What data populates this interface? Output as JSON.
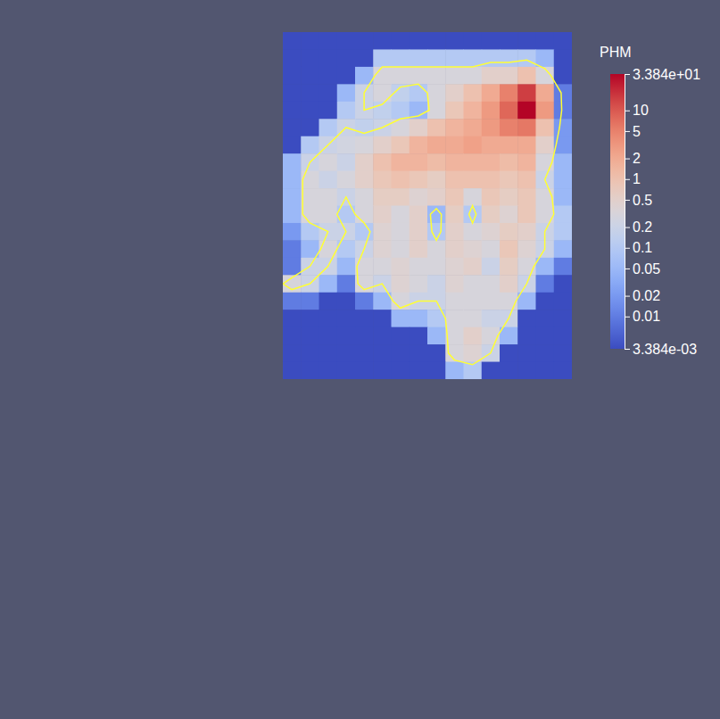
{
  "chart_data": {
    "type": "heatmap",
    "log": true,
    "tick_labels": false,
    "colorbar": {
      "title": "PHM",
      "range": [
        0.003384,
        33.84
      ],
      "ticks": [
        {
          "value": 33.84,
          "label": "3.384e+01"
        },
        10,
        5,
        2,
        1,
        0.5,
        0.2,
        0.1,
        0.05,
        0.02,
        0.01,
        {
          "value": 0.003384,
          "label": "3.384e-03"
        }
      ]
    },
    "contour_levels": [
      0.2
    ],
    "contour_color": "#ffff33",
    "z": [
      [
        0.003384,
        0.003384,
        0.003384,
        0.003384,
        0.003384,
        0.003384,
        0.003384,
        0.003384,
        0.003384,
        0.003384,
        0.003384,
        0.003384,
        0.003384,
        0.003384,
        0.003384,
        0.003384
      ],
      [
        0.003384,
        0.003384,
        0.003384,
        0.003384,
        0.003384,
        0.1,
        0.1,
        0.1,
        0.1,
        0.1,
        0.1,
        0.1,
        0.1,
        0.1,
        0.05,
        0.003384
      ],
      [
        0.003384,
        0.003384,
        0.003384,
        0.003384,
        0.05,
        0.3,
        0.3,
        0.3,
        0.3,
        0.3,
        0.3,
        0.5,
        0.5,
        1,
        0.3,
        0.003384
      ],
      [
        0.003384,
        0.003384,
        0.003384,
        0.05,
        0.2,
        0.3,
        0.15,
        0.1,
        0.3,
        0.5,
        1,
        2,
        5,
        15,
        2,
        0.01
      ],
      [
        0.003384,
        0.003384,
        0.003384,
        0.1,
        0.2,
        0.15,
        0.1,
        0.05,
        0.3,
        0.8,
        1.5,
        3,
        8,
        33.84,
        3,
        0.01
      ],
      [
        0.003384,
        0.003384,
        0.1,
        0.2,
        0.15,
        0.2,
        0.3,
        0.5,
        1,
        1.5,
        2,
        3,
        5,
        6,
        1,
        0.02
      ],
      [
        0.003384,
        0.1,
        0.2,
        0.25,
        0.3,
        0.5,
        0.8,
        1.5,
        2,
        2,
        2.5,
        2,
        2,
        2,
        0.5,
        0.02
      ],
      [
        0.05,
        0.2,
        0.3,
        0.2,
        0.5,
        1,
        1.5,
        1.5,
        1.2,
        1.5,
        1.5,
        1.5,
        1.2,
        1.5,
        0.3,
        0.05
      ],
      [
        0.05,
        0.3,
        0.2,
        0.3,
        0.5,
        0.8,
        1,
        0.8,
        0.6,
        1,
        1,
        1,
        0.8,
        1,
        0.2,
        0.05
      ],
      [
        0.05,
        0.3,
        0.3,
        0.2,
        0.3,
        0.6,
        0.6,
        0.4,
        0.5,
        0.8,
        0.3,
        0.8,
        0.6,
        0.8,
        0.3,
        0.05
      ],
      [
        0.05,
        0.3,
        0.3,
        0.1,
        0.3,
        0.5,
        0.3,
        0.5,
        0.05,
        0.6,
        0.1,
        0.6,
        0.4,
        0.8,
        0.3,
        0.1
      ],
      [
        0.02,
        0.1,
        0.2,
        0.2,
        0.1,
        0.4,
        0.3,
        0.5,
        0.1,
        0.5,
        0.3,
        0.4,
        0.6,
        0.5,
        0.2,
        0.1
      ],
      [
        0.01,
        0.05,
        0.3,
        0.1,
        0.2,
        0.4,
        0.3,
        0.5,
        0.3,
        0.5,
        0.4,
        0.3,
        0.8,
        0.4,
        0.2,
        0.05
      ],
      [
        0.01,
        0.2,
        0.2,
        0.05,
        0.3,
        0.3,
        0.4,
        0.3,
        0.3,
        0.4,
        0.5,
        0.2,
        0.6,
        0.3,
        0.05,
        0.01
      ],
      [
        0.3,
        0.2,
        0.05,
        0.01,
        0.3,
        0.2,
        0.4,
        0.3,
        0.2,
        0.4,
        0.3,
        0.3,
        0.5,
        0.2,
        0.01,
        0.003384
      ],
      [
        0.01,
        0.01,
        0.003384,
        0.003384,
        0.01,
        0.05,
        0.3,
        0.2,
        0.2,
        0.3,
        0.3,
        0.3,
        0.3,
        0.05,
        0.003384,
        0.003384
      ],
      [
        0.003384,
        0.003384,
        0.003384,
        0.003384,
        0.003384,
        0.003384,
        0.05,
        0.05,
        0.1,
        0.3,
        0.3,
        0.2,
        0.2,
        0.003384,
        0.003384,
        0.003384
      ],
      [
        0.003384,
        0.003384,
        0.003384,
        0.003384,
        0.003384,
        0.003384,
        0.003384,
        0.003384,
        0.05,
        0.3,
        0.5,
        0.3,
        0.05,
        0.003384,
        0.003384,
        0.003384
      ],
      [
        0.003384,
        0.003384,
        0.003384,
        0.003384,
        0.003384,
        0.003384,
        0.003384,
        0.003384,
        0.003384,
        0.3,
        0.4,
        0.2,
        0.003384,
        0.003384,
        0.003384,
        0.003384
      ],
      [
        0.003384,
        0.003384,
        0.003384,
        0.003384,
        0.003384,
        0.003384,
        0.003384,
        0.003384,
        0.003384,
        0.05,
        0.1,
        0.003384,
        0.003384,
        0.003384,
        0.003384,
        0.003384
      ]
    ]
  }
}
